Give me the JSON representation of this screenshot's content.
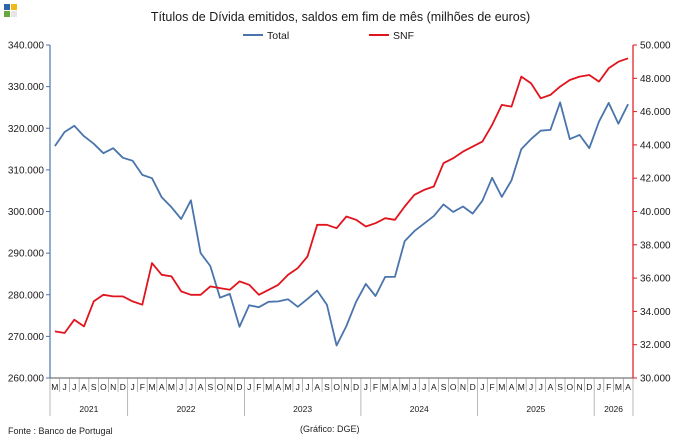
{
  "chart_data": {
    "type": "line",
    "title": "Títulos de Dívida emitidos, saldos em fim de mês  (milhões de euros)",
    "source": "Fonte : Banco de Portugal",
    "credit": "(Gráfico: DGE)",
    "legend_position": "top",
    "months": [
      "M",
      "J",
      "J",
      "A",
      "S",
      "O",
      "N",
      "D",
      "J",
      "F",
      "M",
      "A",
      "M",
      "J",
      "J",
      "A",
      "S",
      "O",
      "N",
      "D",
      "J",
      "F",
      "M",
      "A",
      "M",
      "J",
      "J",
      "A",
      "S",
      "O",
      "N",
      "D",
      "J",
      "F",
      "M",
      "A",
      "M",
      "J",
      "J",
      "A",
      "S",
      "O",
      "N",
      "D",
      "J",
      "F",
      "M",
      "A",
      "M",
      "J",
      "J",
      "A",
      "S",
      "O",
      "N",
      "D",
      "J",
      "F",
      "M",
      "A"
    ],
    "years": [
      {
        "label": "2021",
        "count": 8
      },
      {
        "label": "2022",
        "count": 12
      },
      {
        "label": "2023",
        "count": 12
      },
      {
        "label": "2024",
        "count": 12
      },
      {
        "label": "2025",
        "count": 12
      },
      {
        "label": "2026",
        "count": 4
      }
    ],
    "y_left": {
      "min": 260000,
      "max": 340000,
      "step": 10000,
      "ticks": [
        "260.000",
        "270.000",
        "280.000",
        "290.000",
        "300.000",
        "310.000",
        "320.000",
        "330.000",
        "340.000"
      ]
    },
    "y_right": {
      "min": 30000,
      "max": 50000,
      "step": 2000,
      "ticks": [
        "30.000",
        "32.000",
        "34.000",
        "36.000",
        "38.000",
        "40.000",
        "42.000",
        "44.000",
        "46.000",
        "48.000",
        "50.000"
      ]
    },
    "grid": false,
    "series": [
      {
        "name": "Total",
        "axis": "left",
        "color": "#4a74ac",
        "values": [
          315700,
          319100,
          320600,
          318100,
          316300,
          314000,
          315200,
          312900,
          312200,
          308800,
          308000,
          303400,
          301000,
          298200,
          302700,
          290000,
          286900,
          279300,
          280200,
          272300,
          277500,
          277000,
          278300,
          278400,
          278900,
          277100,
          279000,
          281000,
          277600,
          267800,
          272500,
          278300,
          282600,
          279700,
          284300,
          284300,
          292900,
          295300,
          297100,
          298900,
          301700,
          299900,
          301200,
          299500,
          302600,
          308100,
          303500,
          307500,
          315000,
          317400,
          319400,
          319600,
          326200,
          317400,
          318400,
          315200,
          321600,
          326100,
          321100,
          325800
        ]
      },
      {
        "name": "SNF",
        "axis": "right",
        "color": "#e1141e",
        "values": [
          32800,
          32700,
          33500,
          33100,
          34600,
          35000,
          34900,
          34900,
          34600,
          34400,
          36900,
          36200,
          36100,
          35200,
          35000,
          35000,
          35500,
          35400,
          35300,
          35800,
          35600,
          35000,
          35300,
          35600,
          36200,
          36600,
          37300,
          39200,
          39200,
          39000,
          39700,
          39500,
          39100,
          39300,
          39600,
          39500,
          40300,
          41000,
          41300,
          41500,
          42900,
          43200,
          43600,
          43900,
          44200,
          45200,
          46400,
          46300,
          48100,
          47700,
          46800,
          47000,
          47500,
          47900,
          48100,
          48200,
          47800,
          48600,
          49000,
          49200
        ]
      }
    ]
  }
}
